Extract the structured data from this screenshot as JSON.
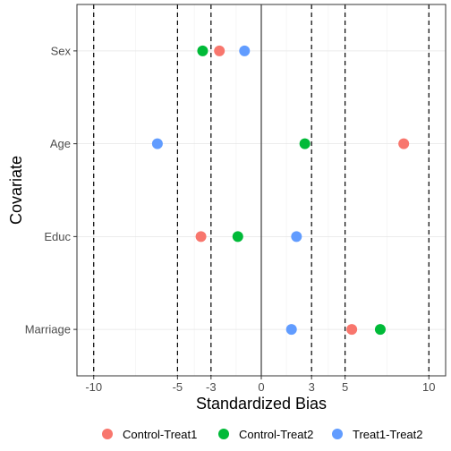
{
  "chart_data": {
    "type": "scatter",
    "xlabel": "Standardized Bias",
    "ylabel": "Covariate",
    "xlim": [
      -11,
      11
    ],
    "x_ticks": [
      -10,
      -5,
      -3,
      0,
      3,
      5,
      10
    ],
    "x_tick_labels": [
      "-10",
      "-5",
      "-3",
      "0",
      "3",
      "5",
      "10"
    ],
    "reference_lines": {
      "solid": [
        0
      ],
      "dashed": [
        -10,
        -5,
        -3,
        3,
        5,
        10
      ]
    },
    "categories": [
      "Sex",
      "Age",
      "Educ",
      "Marriage"
    ],
    "grid": true,
    "legend_position": "bottom",
    "series": [
      {
        "name": "Control-Treat1",
        "color": "#F8766D",
        "values": [
          -2.5,
          8.5,
          -3.6,
          5.4
        ]
      },
      {
        "name": "Control-Treat2",
        "color": "#00BA38",
        "values": [
          -3.5,
          2.6,
          -1.4,
          7.1
        ]
      },
      {
        "name": "Treat1-Treat2",
        "color": "#619CFF",
        "values": [
          -1.0,
          -6.2,
          2.1,
          1.8
        ]
      }
    ]
  }
}
